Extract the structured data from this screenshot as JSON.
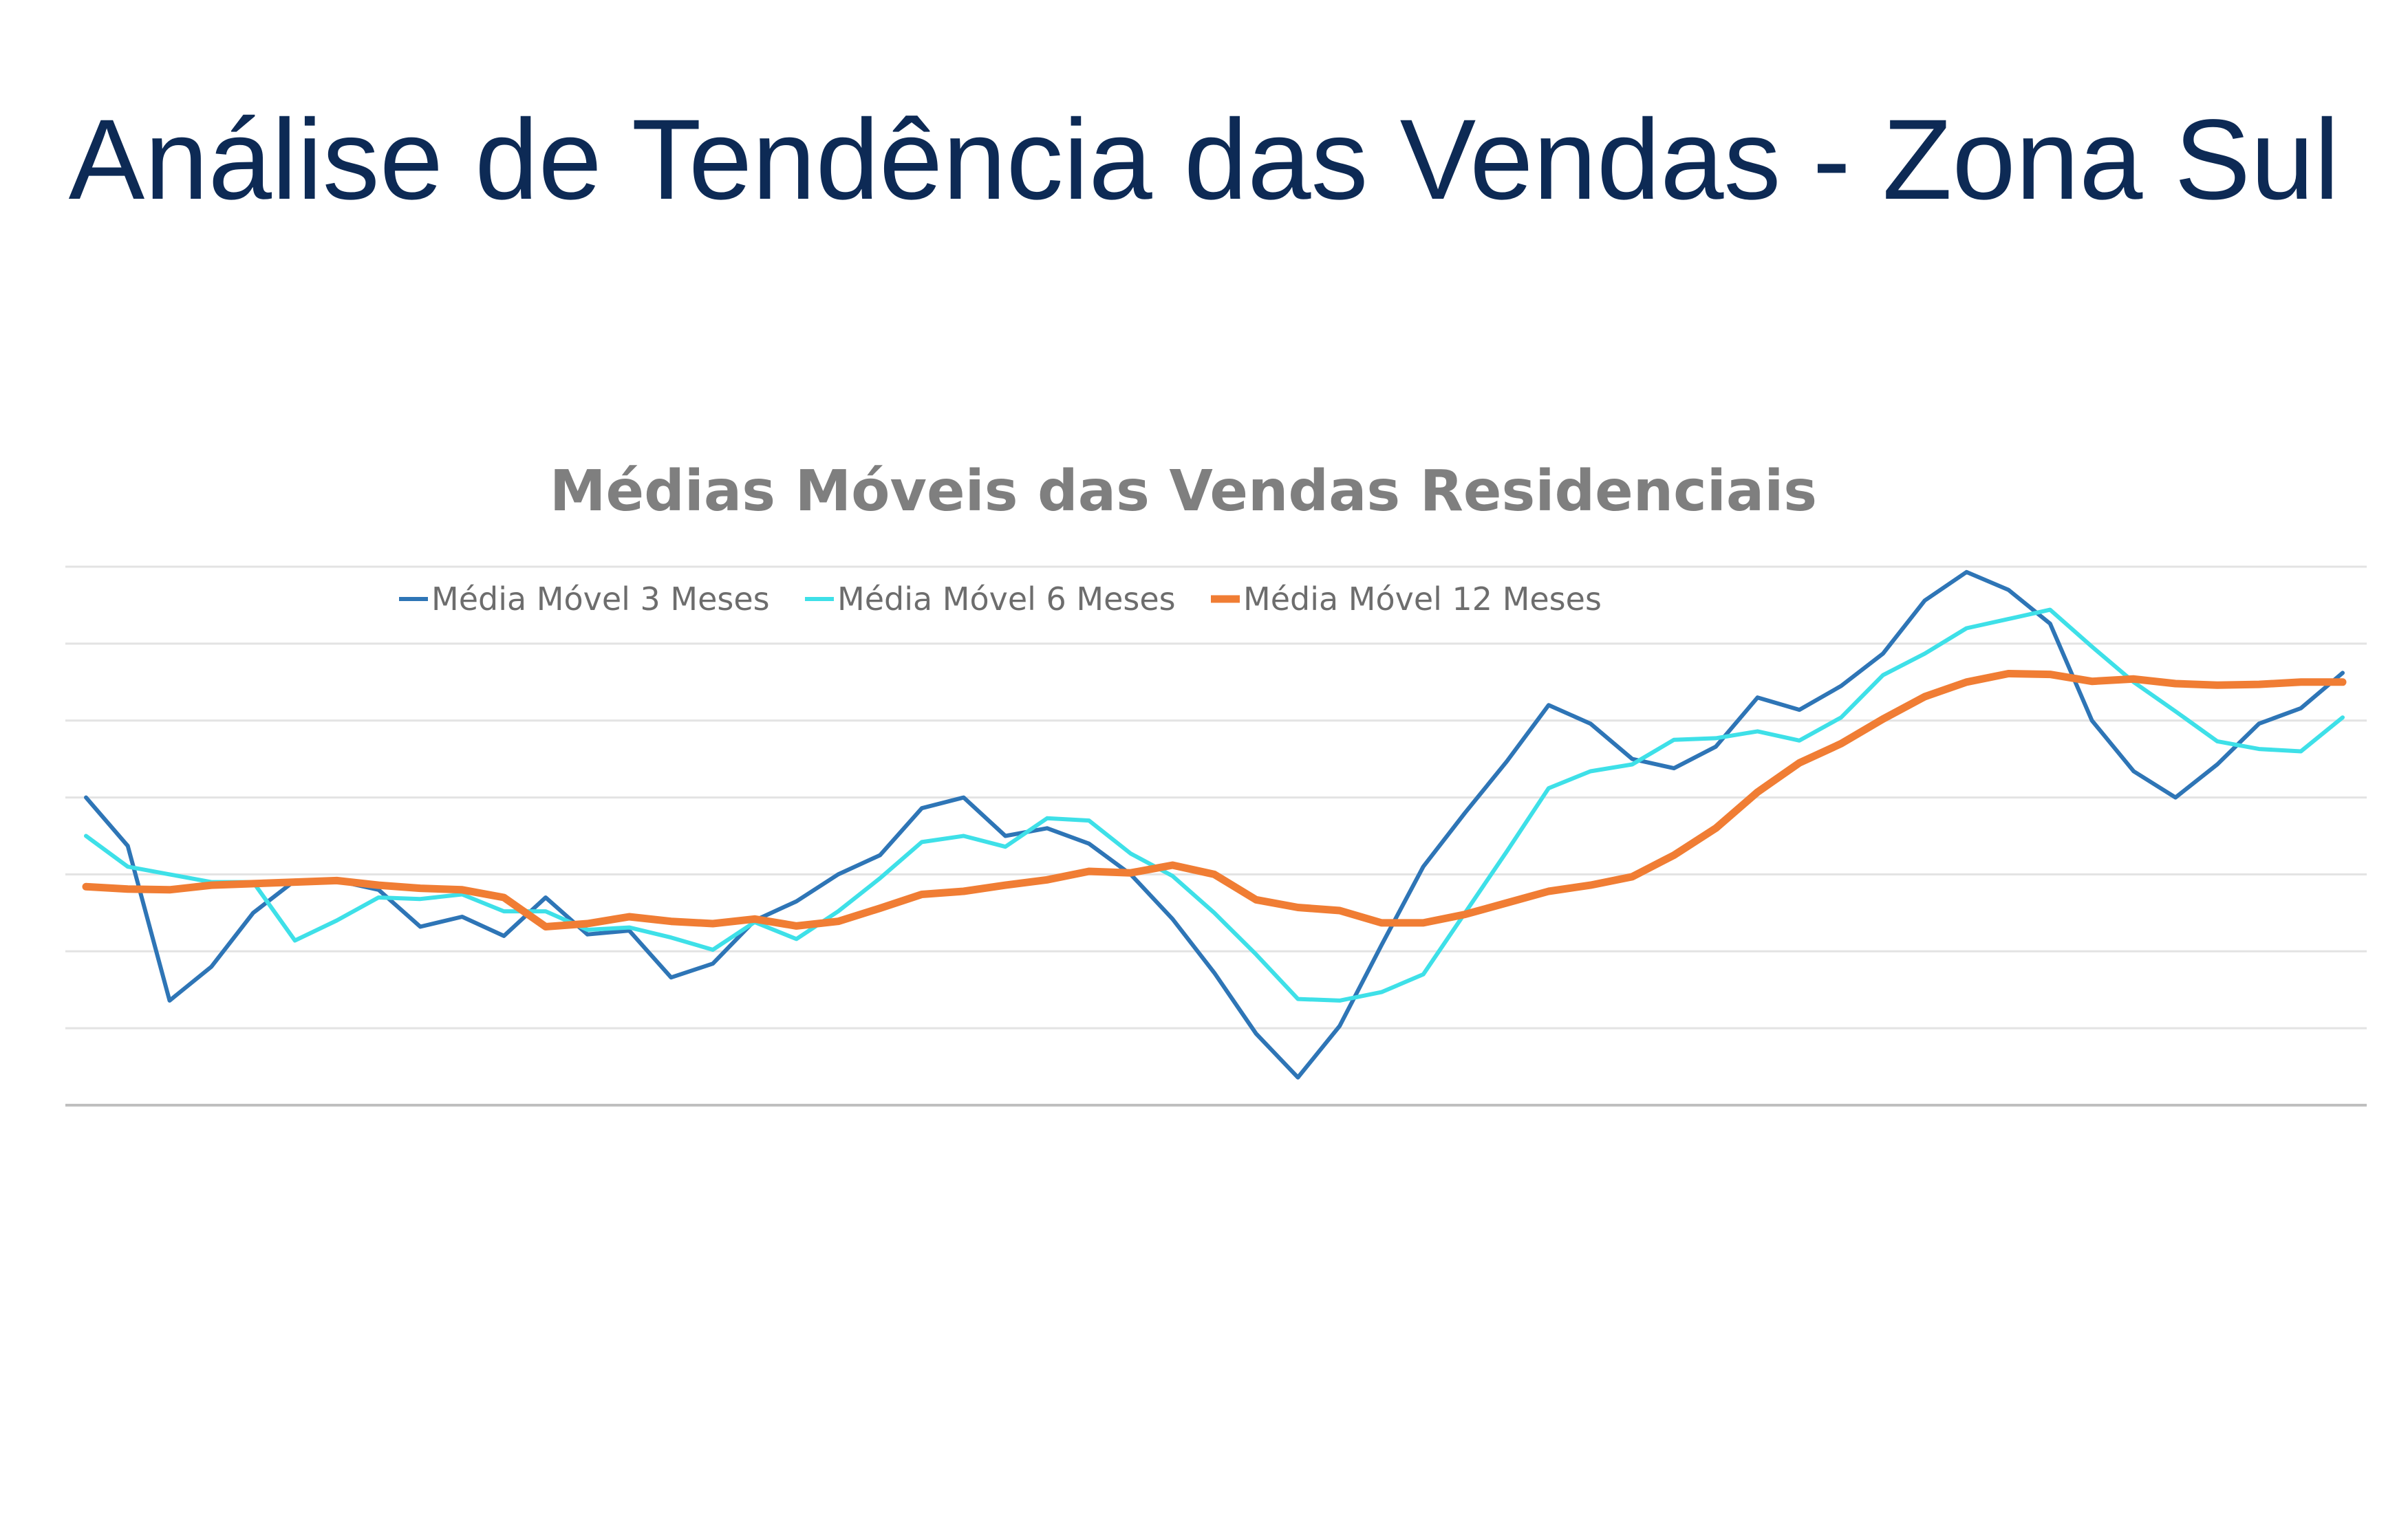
{
  "slide": {
    "title": "Análise de Tendência das Vendas - Zona Sul"
  },
  "chart_data": {
    "type": "line",
    "title": "Médias Móveis das Vendas Residenciais",
    "xlabel": "",
    "ylabel": "",
    "ylim": [
      0,
      7
    ],
    "grid": true,
    "legend_position": "top-left",
    "point_count": 55,
    "series": [
      {
        "name": "Média Móvel 3 Meses",
        "color": "#2e75b6",
        "width": 6,
        "values": [
          4.0,
          3.37,
          1.36,
          1.8,
          2.5,
          2.92,
          2.92,
          2.8,
          2.32,
          2.45,
          2.2,
          2.7,
          2.22,
          2.27,
          1.66,
          1.84,
          2.4,
          2.65,
          3.0,
          3.25,
          3.86,
          4.0,
          3.5,
          3.6,
          3.4,
          3.0,
          2.42,
          1.72,
          0.93,
          0.36,
          1.03,
          2.08,
          3.1,
          3.8,
          4.47,
          5.2,
          4.96,
          4.5,
          4.38,
          4.66,
          5.3,
          5.14,
          5.45,
          5.87,
          6.56,
          6.93,
          6.7,
          6.26,
          5.0,
          4.34,
          4.0,
          4.43,
          4.96,
          5.16,
          5.62
        ]
      },
      {
        "name": "Média Móvel 6 Meses",
        "color": "#3ee0e8",
        "width": 6,
        "values": [
          3.5,
          3.1,
          3.0,
          2.9,
          2.9,
          2.14,
          2.4,
          2.7,
          2.68,
          2.74,
          2.52,
          2.52,
          2.28,
          2.31,
          2.18,
          2.02,
          2.38,
          2.16,
          2.52,
          2.95,
          3.42,
          3.5,
          3.36,
          3.73,
          3.7,
          3.27,
          2.98,
          2.5,
          1.96,
          1.38,
          1.36,
          1.47,
          1.7,
          2.5,
          3.3,
          4.12,
          4.34,
          4.43,
          4.75,
          4.77,
          4.86,
          4.74,
          5.04,
          5.59,
          5.87,
          6.2,
          6.32,
          6.44,
          5.96,
          5.5,
          5.12,
          4.73,
          4.63,
          4.6,
          5.04
        ]
      },
      {
        "name": "Média Móvel 12 Meses",
        "color": "#f07d34",
        "width": 11,
        "values": [
          2.84,
          2.81,
          2.8,
          2.86,
          2.88,
          2.9,
          2.92,
          2.86,
          2.82,
          2.8,
          2.7,
          2.32,
          2.36,
          2.45,
          2.39,
          2.36,
          2.42,
          2.33,
          2.39,
          2.56,
          2.74,
          2.78,
          2.86,
          2.93,
          3.04,
          3.02,
          3.12,
          3.0,
          2.67,
          2.57,
          2.53,
          2.37,
          2.37,
          2.48,
          2.63,
          2.78,
          2.86,
          2.97,
          3.25,
          3.6,
          4.07,
          4.45,
          4.7,
          5.02,
          5.31,
          5.5,
          5.61,
          5.6,
          5.51,
          5.54,
          5.48,
          5.46,
          5.47,
          5.5,
          5.5
        ]
      }
    ]
  }
}
